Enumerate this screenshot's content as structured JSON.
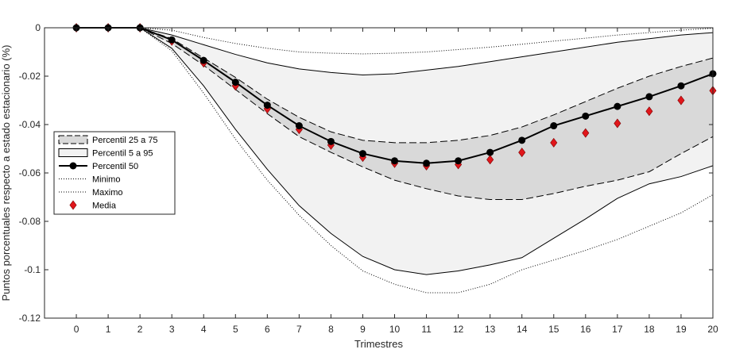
{
  "chart_data": {
    "type": "line",
    "title": "",
    "xlabel": "Trimestres",
    "ylabel": "Puntos porcentuales respecto a estado estacionario (%)",
    "x": [
      0,
      1,
      2,
      3,
      4,
      5,
      6,
      7,
      8,
      9,
      10,
      11,
      12,
      13,
      14,
      15,
      16,
      17,
      18,
      19,
      20
    ],
    "xlim": [
      -1,
      20
    ],
    "ylim": [
      -0.12,
      0
    ],
    "xticks": [
      "0",
      "1",
      "2",
      "3",
      "4",
      "5",
      "6",
      "7",
      "8",
      "9",
      "10",
      "11",
      "12",
      "13",
      "14",
      "15",
      "16",
      "17",
      "18",
      "19",
      "20"
    ],
    "yticks": [
      "0",
      "-0.02",
      "-0.04",
      "-0.06",
      "-0.08",
      "-0.1",
      "-0.12"
    ],
    "ytick_values": [
      0,
      -0.02,
      -0.04,
      -0.06,
      -0.08,
      -0.1,
      -0.12
    ],
    "grid": false,
    "legend_position": "left",
    "colors": {
      "band_5_95": "#f2f2f2",
      "band_25_75": "#d9d9d9",
      "median": "#000000",
      "mean": "#e0161b"
    },
    "series": [
      {
        "name": "Percentil 25 a 75",
        "kind": "band",
        "lower": [
          0,
          0,
          0,
          -0.0065,
          -0.0155,
          -0.0255,
          -0.0355,
          -0.045,
          -0.0515,
          -0.0575,
          -0.063,
          -0.0665,
          -0.0695,
          -0.071,
          -0.071,
          -0.0685,
          -0.0655,
          -0.063,
          -0.0595,
          -0.052,
          -0.045
        ],
        "upper": [
          0,
          0,
          0,
          -0.0045,
          -0.0125,
          -0.0205,
          -0.0295,
          -0.037,
          -0.043,
          -0.0465,
          -0.0475,
          -0.0475,
          -0.0465,
          -0.0445,
          -0.041,
          -0.036,
          -0.0305,
          -0.025,
          -0.02,
          -0.016,
          -0.0125
        ]
      },
      {
        "name": "Percentil 5 a 95",
        "kind": "band",
        "lower": [
          0,
          0,
          0,
          -0.0085,
          -0.024,
          -0.042,
          -0.0585,
          -0.0735,
          -0.085,
          -0.0945,
          -0.1,
          -0.102,
          -0.1005,
          -0.098,
          -0.095,
          -0.087,
          -0.079,
          -0.0705,
          -0.0645,
          -0.0615,
          -0.057
        ],
        "upper": [
          0,
          0,
          0,
          -0.003,
          -0.007,
          -0.011,
          -0.0145,
          -0.017,
          -0.0185,
          -0.0195,
          -0.019,
          -0.0175,
          -0.016,
          -0.014,
          -0.012,
          -0.01,
          -0.008,
          -0.006,
          -0.0045,
          -0.003,
          -0.002
        ]
      },
      {
        "name": "Percentil 50",
        "kind": "line",
        "values": [
          0,
          0,
          0,
          -0.005,
          -0.0135,
          -0.0225,
          -0.032,
          -0.0405,
          -0.047,
          -0.052,
          -0.055,
          -0.056,
          -0.055,
          -0.0515,
          -0.0465,
          -0.0405,
          -0.0365,
          -0.0325,
          -0.0285,
          -0.024,
          -0.019
        ]
      },
      {
        "name": "Minimo",
        "kind": "dotted",
        "values": [
          0,
          0,
          0,
          -0.0095,
          -0.027,
          -0.046,
          -0.063,
          -0.0775,
          -0.09,
          -0.1005,
          -0.106,
          -0.1095,
          -0.1095,
          -0.106,
          -0.1,
          -0.096,
          -0.092,
          -0.0875,
          -0.082,
          -0.0765,
          -0.069
        ]
      },
      {
        "name": "Maximo",
        "kind": "dotted",
        "values": [
          0,
          0,
          0,
          -0.001,
          -0.004,
          -0.0065,
          -0.0085,
          -0.01,
          -0.0105,
          -0.0108,
          -0.0105,
          -0.01,
          -0.009,
          -0.008,
          -0.0068,
          -0.0055,
          -0.0043,
          -0.003,
          -0.002,
          -0.001,
          -0.0002
        ]
      },
      {
        "name": "Media",
        "kind": "marker",
        "values": [
          0,
          0,
          0,
          -0.0055,
          -0.0145,
          -0.024,
          -0.0335,
          -0.042,
          -0.0485,
          -0.0535,
          -0.056,
          -0.057,
          -0.0565,
          -0.0545,
          -0.0515,
          -0.0475,
          -0.0435,
          -0.0395,
          -0.0345,
          -0.03,
          -0.026
        ]
      }
    ]
  }
}
